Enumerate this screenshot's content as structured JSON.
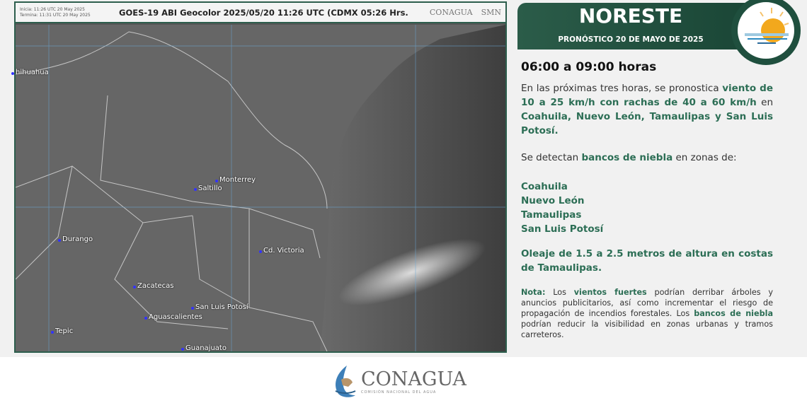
{
  "satellite": {
    "start": "Inicia: 11:26 UTC 20 May 2025",
    "end": "Termina: 11:31 UTC 20 May 2025",
    "title": "GOES-19 ABI Geocolor 2025/05/20 11:26 UTC (CDMX  05:26 Hrs.",
    "logo1": "CONAGUA",
    "logo2": "SMN",
    "cities": [
      "hihuahua",
      "Monterrey",
      "Saltillo",
      "Durango",
      "Cd. Victoria",
      "Zacatecas",
      "San Luis Potosí",
      "Aguascalientes",
      "Tepic",
      "Guanajuato"
    ]
  },
  "forecast": {
    "region": "NORESTE",
    "date": "PRONÓSTICO 20 DE MAYO DE 2025",
    "time_range": "06:00 a 09:00 horas",
    "p1": [
      "En las próximas tres horas, se pronostica ",
      "viento de 10 a 25 km/h con rachas de 40 a 60 km/h",
      " en ",
      "Coahuila, Nuevo León, Tamaulipas y San Luis Potosí."
    ],
    "p2": [
      "Se detectan ",
      "bancos de niebla",
      " en zonas de:"
    ],
    "states": [
      "Coahuila",
      "Nuevo León",
      "Tamaulipas",
      "San Luis Potosí"
    ],
    "waves": "Oleaje de 1.5 a 2.5 metros de altura en costas de Tamaulipas.",
    "note": [
      "Nota:",
      " Los ",
      "vientos fuertes",
      " podrían derribar árboles y anuncios publicitarios, así como incrementar el riesgo de propagación de incendios forestales. Los ",
      "bancos de niebla",
      " podrían reducir la visibilidad en zonas urbanas y tramos carreteros."
    ]
  },
  "footer": {
    "logo": "CONAGUA",
    "subtitle": "COMISIÓN NACIONAL DEL AGUA"
  },
  "colors": {
    "brand_green": "#2b5c49",
    "text_green": "#2c6e55"
  }
}
